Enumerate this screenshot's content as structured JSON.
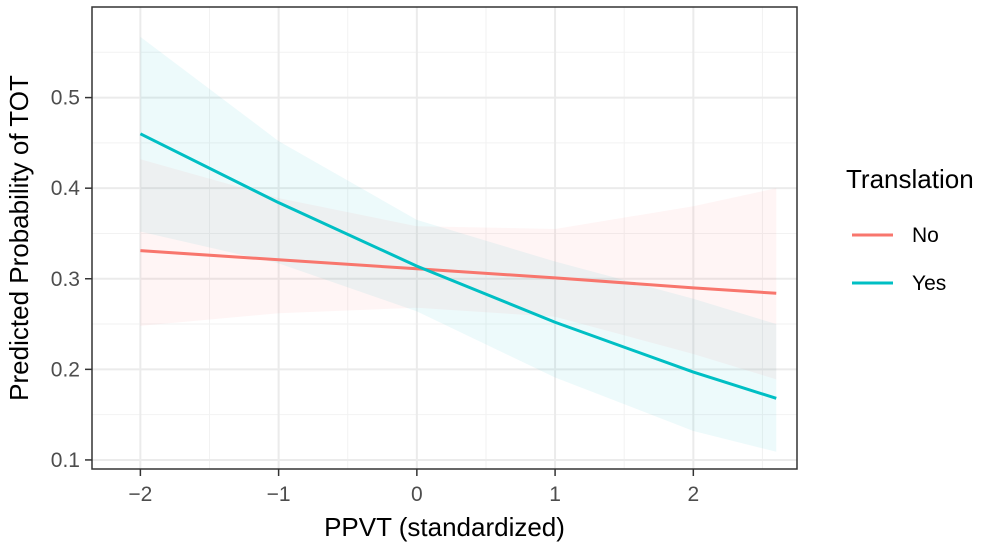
{
  "chart_data": {
    "type": "line",
    "xlabel": "PPVT (standardized)",
    "ylabel": "Predicted Probability of TOT",
    "xlim": [
      -2.35,
      2.75
    ],
    "ylim": [
      0.09,
      0.6
    ],
    "xticks": [
      -2,
      -1,
      0,
      1,
      2
    ],
    "xtick_labels": [
      "−2",
      "−1",
      "0",
      "1",
      "2"
    ],
    "yticks": [
      0.1,
      0.2,
      0.3,
      0.4,
      0.5
    ],
    "ytick_labels": [
      "0.1",
      "0.2",
      "0.3",
      "0.4",
      "0.5"
    ],
    "grid": true,
    "legend": {
      "title": "Translation",
      "position": "right"
    },
    "series": [
      {
        "name": "No",
        "color": "#F8766D",
        "x": [
          -2,
          -1,
          0,
          1,
          2,
          2.6
        ],
        "y": [
          0.331,
          0.321,
          0.311,
          0.301,
          0.29,
          0.284
        ],
        "ci_lower": [
          0.248,
          0.262,
          0.268,
          0.258,
          0.217,
          0.189
        ],
        "ci_upper": [
          0.432,
          0.389,
          0.358,
          0.355,
          0.38,
          0.4
        ]
      },
      {
        "name": "Yes",
        "color": "#00BFC4",
        "x": [
          -2,
          -1,
          0,
          1,
          2,
          2.6
        ],
        "y": [
          0.46,
          0.384,
          0.314,
          0.252,
          0.197,
          0.168
        ],
        "ci_lower": [
          0.352,
          0.317,
          0.264,
          0.191,
          0.132,
          0.109
        ],
        "ci_upper": [
          0.567,
          0.452,
          0.365,
          0.319,
          0.278,
          0.25
        ]
      }
    ]
  }
}
